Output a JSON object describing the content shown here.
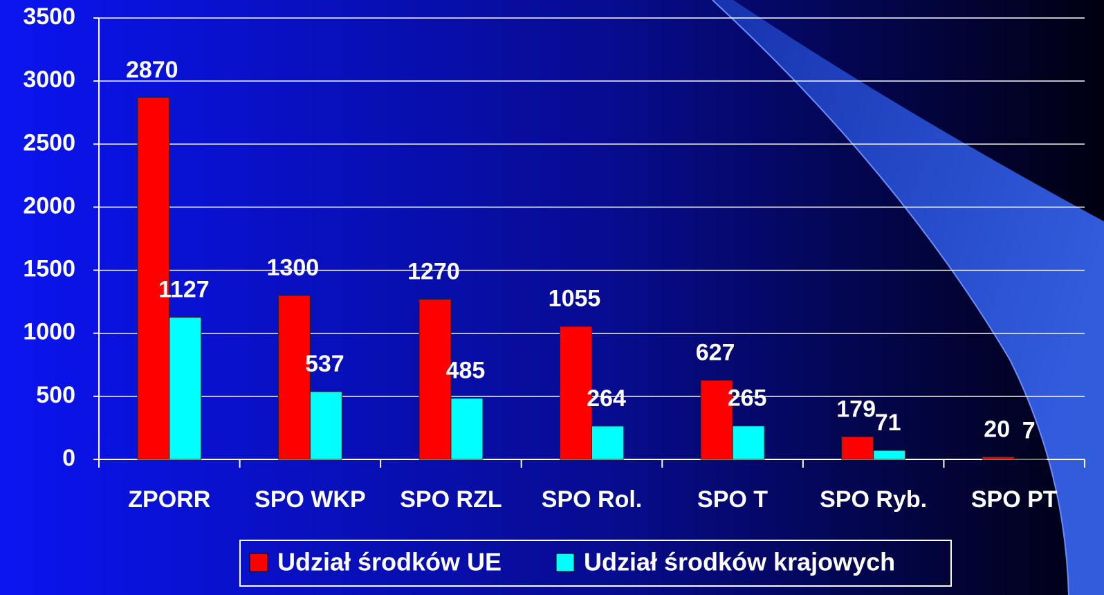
{
  "chart_data": {
    "type": "bar",
    "categories": [
      "ZPORR",
      "SPO WKP",
      "SPO RZL",
      "SPO Rol.",
      "SPO T",
      "SPO Ryb.",
      "SPO PT"
    ],
    "series": [
      {
        "name": "Udział środków UE",
        "color": "#ff0000",
        "values": [
          2870,
          1300,
          1270,
          1055,
          627,
          179,
          20
        ]
      },
      {
        "name": "Udział środków krajowych",
        "color": "#00ffff",
        "values": [
          1127,
          537,
          485,
          264,
          265,
          71,
          7
        ]
      }
    ],
    "ylim": [
      0,
      3500
    ],
    "yticks": [
      0,
      500,
      1000,
      1500,
      2000,
      2500,
      3000,
      3500
    ],
    "grid": true,
    "legend": "bottom"
  }
}
